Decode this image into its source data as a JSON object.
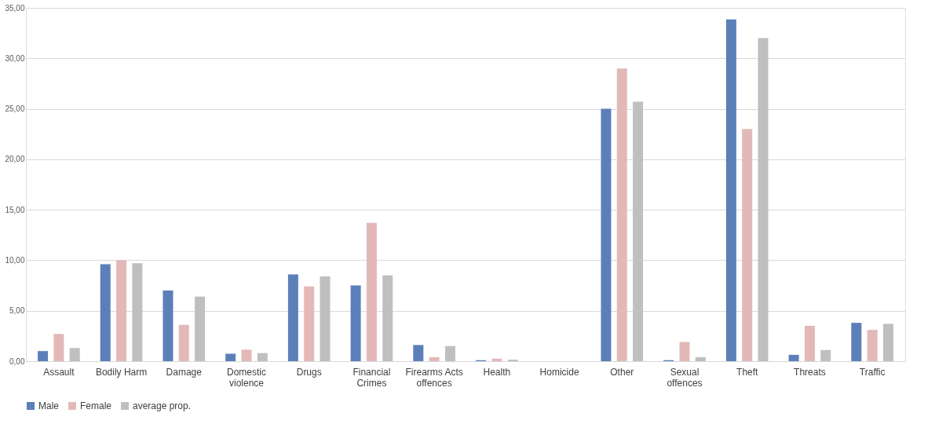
{
  "chart_data": {
    "type": "bar",
    "categories": [
      "Assault",
      "Bodily Harm",
      "Damage",
      "Domestic violence",
      "Drugs",
      "Financial Crimes",
      "Firearms Acts offences",
      "Health",
      "Homicide",
      "Other",
      "Sexual offences",
      "Theft",
      "Threats",
      "Traffic"
    ],
    "series": [
      {
        "name": "Male",
        "color": "#5b7fb9",
        "values": [
          1.0,
          9.6,
          7.0,
          0.74,
          8.6,
          7.5,
          1.6,
          0.1,
          0,
          25.0,
          0.1,
          33.85,
          0.63,
          3.8
        ]
      },
      {
        "name": "Female",
        "color": "#e2b9b8",
        "values": [
          2.7,
          10.0,
          3.6,
          1.14,
          7.4,
          13.7,
          0.4,
          0.25,
          0,
          29.0,
          1.9,
          23.0,
          3.5,
          3.1
        ]
      },
      {
        "name": "average prop.",
        "color": "#bfbfbf",
        "values": [
          1.3,
          9.7,
          6.4,
          0.8,
          8.4,
          8.5,
          1.5,
          0.15,
          0,
          25.7,
          0.4,
          32.0,
          1.1,
          3.7
        ]
      }
    ],
    "ylim": [
      0,
      35
    ],
    "yticks": [
      {
        "value": 0,
        "label": "0,00"
      },
      {
        "value": 5,
        "label": "5,00"
      },
      {
        "value": 10,
        "label": "10,00"
      },
      {
        "value": 15,
        "label": "15,00"
      },
      {
        "value": 20,
        "label": "20,00"
      },
      {
        "value": 25,
        "label": "25,00"
      },
      {
        "value": 30,
        "label": "30,00"
      },
      {
        "value": 35,
        "label": "35,00"
      }
    ],
    "grid": "y",
    "legend": "bottom"
  }
}
